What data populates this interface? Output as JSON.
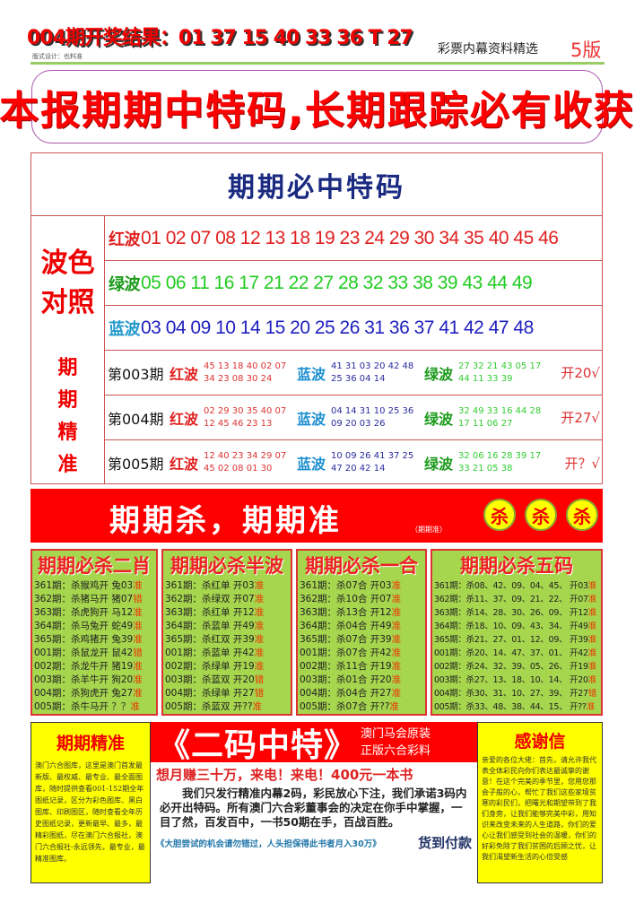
{
  "header": {
    "result": "004期开奖结果：01 37 15 40 33 36 T 27",
    "designer": "版式设计：也料准",
    "tagline": "彩票内幕资料精选",
    "edition": "5版"
  },
  "banner": "本报期期中特码,长期跟踪必有收获",
  "table": {
    "title": "期期必中特码",
    "wave_label": "波色对照",
    "waves": [
      {
        "label": "红波",
        "nums": "01 02 07 08 12 13 18 19 23 24 29 30 34 35 40 45 46",
        "color": "#e02020"
      },
      {
        "label": "绿波",
        "nums": "05  06 11 16  17 21 22 27 28  32 33 38 39 43 44 49",
        "color": "#22cc22"
      },
      {
        "label": "蓝波",
        "nums": "03 04 09 10 14 15  20 25  26  31 36  37 41 42 47 48",
        "color": "#2020c0"
      }
    ],
    "period_label": "期期精准",
    "periods": [
      {
        "name": "第003期",
        "red": [
          "45 13 18 40 02 07",
          "34 23 08 30 24"
        ],
        "blue": [
          "41 31 03 20 42 48",
          "25 36 04 14"
        ],
        "green": [
          "27 32 21 43 05 17",
          "44 11 33 39"
        ],
        "result": "开20√"
      },
      {
        "name": "第004期",
        "red": [
          "02 29 30 35 40 07",
          "12 45 46 23 13"
        ],
        "blue": [
          "04 14 31 10 25 36",
          "09 20 03 26"
        ],
        "green": [
          "32 49 33 16 44 28",
          "17 11 06 27"
        ],
        "result": "开27√"
      },
      {
        "name": "第005期",
        "red": [
          "12 40 23 34 29 07",
          "45 02 08 01 30"
        ],
        "blue": [
          "10 09 26 41 37 25",
          "47 20 42 14"
        ],
        "green": [
          "32 06 16 28 39 17",
          "33 21 05 38"
        ],
        "result": "开？√"
      }
    ],
    "labels": {
      "red": "红波",
      "blue": "蓝波",
      "green": "绿波"
    }
  },
  "kill": {
    "title": "期期杀，期期准",
    "sub": "（期期准）",
    "balls": [
      "杀",
      "杀",
      "杀"
    ]
  },
  "boxes": [
    {
      "title": "期期必杀二肖",
      "rows": [
        [
          "361期：杀猴鸡开 兔03",
          "准"
        ],
        [
          "362期：杀猪马开 猪07",
          "错"
        ],
        [
          "363期：杀虎狗开 马12",
          "准"
        ],
        [
          "364期：杀马兔开 蛇49",
          "准"
        ],
        [
          "365期：杀鸡猪开 兔39",
          "准"
        ],
        [
          "001期：杀鼠龙开 鼠42",
          "错"
        ],
        [
          "002期：杀龙牛开 猪19",
          "准"
        ],
        [
          "003期：杀羊牛开 狗20",
          "准"
        ],
        [
          "004期：杀狗虎开 兔27",
          "准"
        ],
        [
          "005期：杀牛马开 ？？",
          "准"
        ]
      ]
    },
    {
      "title": "期期必杀半波",
      "rows": [
        [
          "361期：杀红单 开03",
          "准"
        ],
        [
          "362期：杀绿双 开07",
          "准"
        ],
        [
          "363期：杀红单 开12",
          "准"
        ],
        [
          "364期：杀蓝单 开49",
          "准"
        ],
        [
          "365期：杀红双 开39",
          "准"
        ],
        [
          "001期：杀蓝单 开42",
          "准"
        ],
        [
          "002期：杀绿单 开19",
          "准"
        ],
        [
          "003期：杀蓝双 开20",
          "错"
        ],
        [
          "004期：杀绿单 开27",
          "错"
        ],
        [
          "005期：杀蓝双 开??",
          "准"
        ]
      ]
    },
    {
      "title": "期期必杀一合",
      "rows": [
        [
          "361期：杀07合 开03",
          "准"
        ],
        [
          "362期：杀10合 开07",
          "准"
        ],
        [
          "363期：杀13合 开12",
          "准"
        ],
        [
          "364期：杀04合 开49",
          "准"
        ],
        [
          "365期：杀07合 开39",
          "准"
        ],
        [
          "001期：杀07合 开42",
          "准"
        ],
        [
          "002期：杀11合 开19",
          "准"
        ],
        [
          "003期：杀01合 开20",
          "准"
        ],
        [
          "004期：杀04合 开27",
          "准"
        ],
        [
          "005期：杀07合 开??",
          "准"
        ]
      ]
    },
    {
      "title": "期期必杀五码",
      "rows": [
        [
          "361期：杀08、42、09、04、45、 开03",
          "准"
        ],
        [
          "362期：杀11、37、09、21、22、 开07",
          "准"
        ],
        [
          "363期：杀14、28、30、26、09、 开12",
          "准"
        ],
        [
          "364期：杀18、10、09、43、34、 开49",
          "准"
        ],
        [
          "365期：杀21、27、01、12、09、 开39",
          "准"
        ],
        [
          "001期：杀20、14、47、37、01、 开42",
          "准"
        ],
        [
          "002期：杀24、32、39、05、26、 开19",
          "准"
        ],
        [
          "003期：杀27、13、18、10、14、 开20",
          "准"
        ],
        [
          "004期：杀30、31、10、27、39、 开27",
          "错"
        ],
        [
          "005期：杀33、48、38、44、15、 开??",
          "准"
        ]
      ]
    }
  ],
  "left_ad": {
    "title": "期期精准",
    "text": "澳门六合图库，这里是澳门首发最新版、最权威、最专业、最全面图库，随时提供查看001-152期全年图纸记录，区分为彩色图库、黑白图库、印刷图区，随时查看全年历史图纸记录，更新最早、最多，最精彩图纸，尽在澳门六合报社，澳门六合报社-永远领先，最专业，最精准图库。"
  },
  "mid_ad": {
    "title": "《二码中特》",
    "side1": "澳门马会原装",
    "side2": "正版六合彩料",
    "slogan": "想月赚三十万，来电！来电！400元一本书",
    "body": "我们只发行精准内幕2码，彩民放心下注，我们承诺3码内必开出特码。所有澳门六合彩董事会的决定在你手中掌握，一目了然，百发百中，一书50期在手，百战百胜。",
    "note": "《大胆尝试的机会请勿错过，人头担保得此书者月入30万》",
    "cod": "货到付款"
  },
  "right_ad": {
    "title": "感谢信",
    "text": "亲爱的各位大佬：首先，请允许我代表全体彩民向你们表达最诚挚的谢意！在这个完美的季节里，您用您那会子般的心，帮忙了我们这些家境贫寒的彩民们，把曙光和期望带到了我们身旁，让我们能够完美中彩，用知识来改变未来的人生道路，你们的爱心让我们感受到社会的温暖，你们的好彩免除了我们贫困的后顾之忧，让我们渴望新生活的心倍受感"
  }
}
